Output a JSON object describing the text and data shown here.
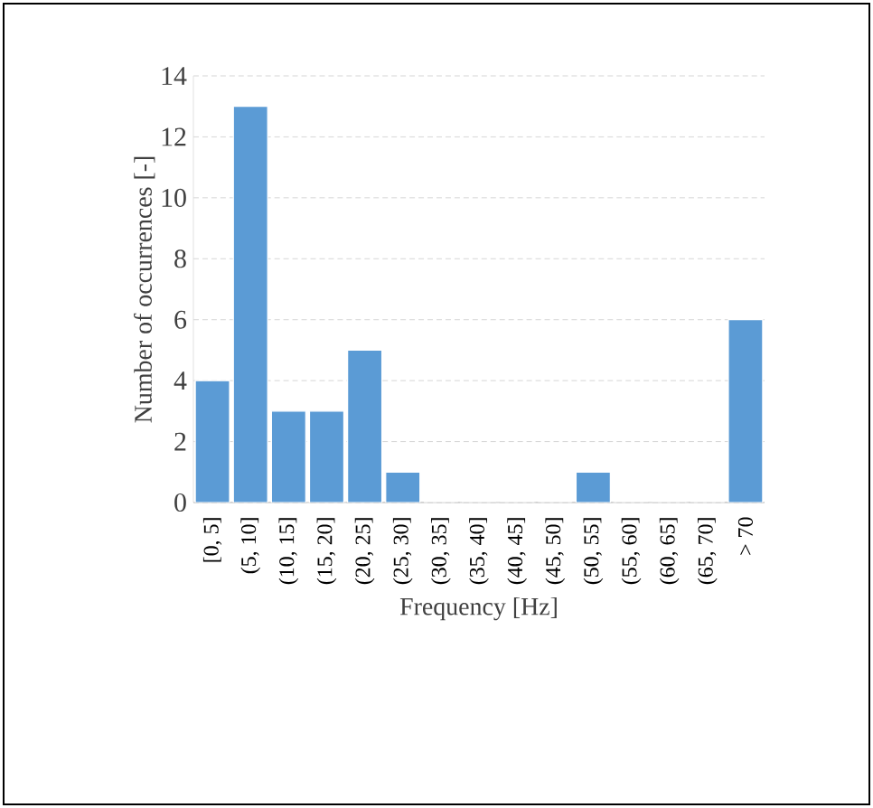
{
  "chart_data": {
    "type": "bar",
    "xlabel": "Frequency [Hz]",
    "ylabel": "Number of occurrences [-]",
    "categories": [
      "[0, 5]",
      "(5, 10]",
      "(10, 15]",
      "(15, 20]",
      "(20, 25]",
      "(25, 30]",
      "(30, 35]",
      "(35, 40]",
      "(40, 45]",
      "(45, 50]",
      "(50, 55]",
      "(55, 60]",
      "(60, 65]",
      "(65, 70]",
      "> 70"
    ],
    "values": [
      4,
      13,
      3,
      3,
      5,
      1,
      0,
      0,
      0,
      0,
      1,
      0,
      0,
      0,
      6
    ],
    "color": "#5b9bd5",
    "ylim": [
      0,
      14
    ],
    "yticks": [
      0,
      2,
      4,
      6,
      8,
      10,
      12,
      14
    ],
    "grid": "y"
  }
}
